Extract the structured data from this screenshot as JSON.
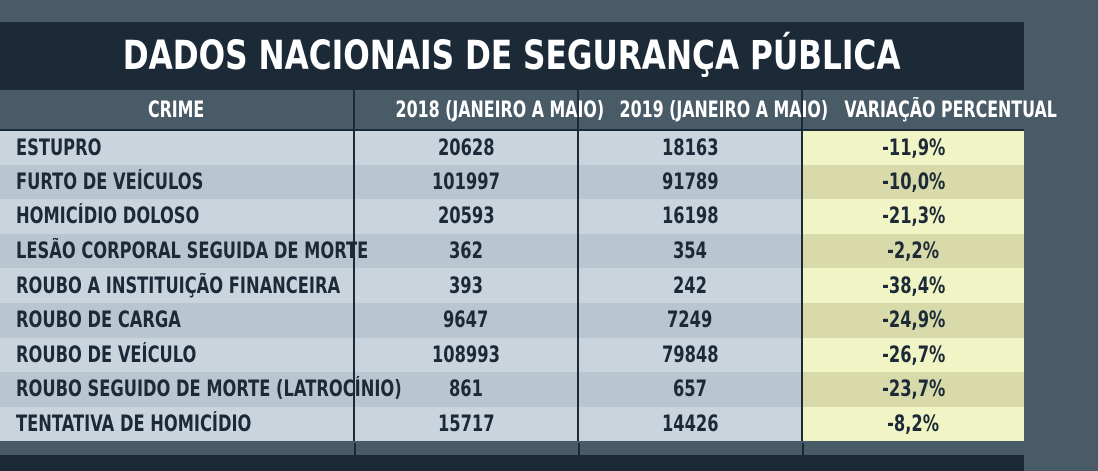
{
  "title": "DADOS NACIONAIS DE SEGURANÇA PÚBLICA",
  "headers": [
    "CRIME",
    "2018 (JANEIRO A MAIO)",
    "2019 (JANEIRO A MAIO)",
    "VARIAÇÃO PERCENTUAL"
  ],
  "rows": [
    {
      "crime": "ESTUPRO",
      "y2018": "20628",
      "y2019": "18163",
      "variation": "-11,9%"
    },
    {
      "crime": "FURTO DE VEÍCULOS",
      "y2018": "101997",
      "y2019": "91789",
      "variation": "-10,0%"
    },
    {
      "crime": "HOMICÍDIO DOLOSO",
      "y2018": "20593",
      "y2019": "16198",
      "variation": "-21,3%"
    },
    {
      "crime": "LESÃO CORPORAL SEGUIDA DE MORTE",
      "y2018": "362",
      "y2019": "354",
      "variation": "-2,2%"
    },
    {
      "crime": "ROUBO A INSTITUIÇÃO FINANCEIRA",
      "y2018": "393",
      "y2019": "242",
      "variation": "-38,4%"
    },
    {
      "crime": "ROUBO DE CARGA",
      "y2018": "9647",
      "y2019": "7249",
      "variation": "-24,9%"
    },
    {
      "crime": "ROUBO DE VEÍCULO",
      "y2018": "108993",
      "y2019": "79848",
      "variation": "-26,7%"
    },
    {
      "crime": "ROUBO SEGUIDO DE MORTE (LATROCÍNIO)",
      "y2018": "861",
      "y2019": "657",
      "variation": "-23,7%"
    },
    {
      "crime": "TENTATIVA DE HOMICÍDIO",
      "y2018": "15717",
      "y2019": "14426",
      "variation": "-8,2%"
    }
  ]
}
